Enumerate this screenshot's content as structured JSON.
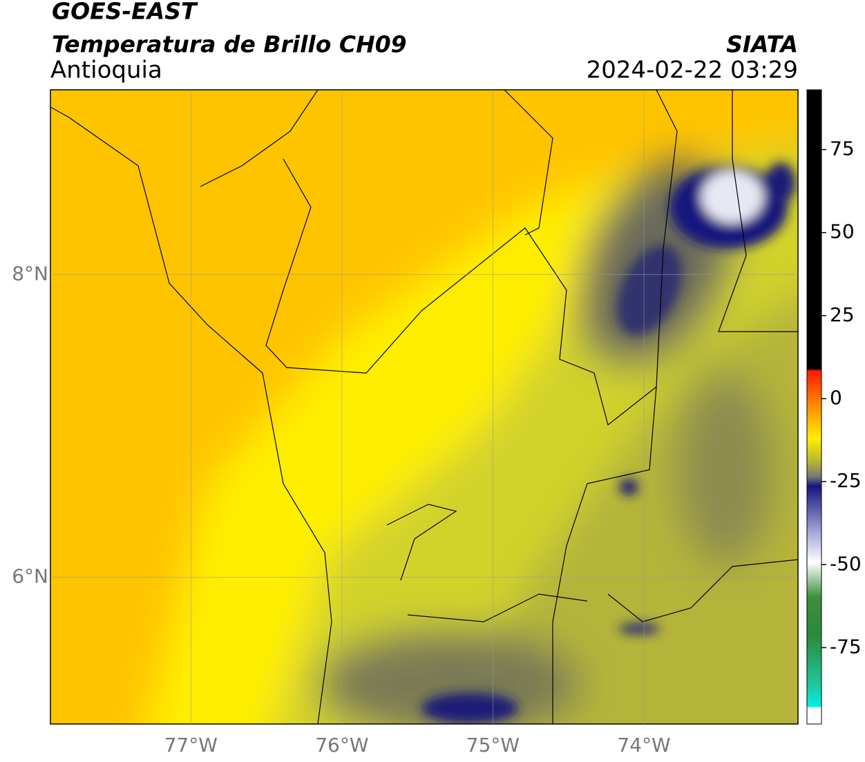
{
  "header": {
    "title": "GOES-EAST",
    "subtitle": "Temperatura de Brillo CH09",
    "region": "Antioquia",
    "source": "SIATA",
    "datetime": "2024-02-22 03:29"
  },
  "map": {
    "xlim": [
      -77.93,
      -72.98
    ],
    "ylim": [
      5.03,
      9.22
    ],
    "xticks": [
      {
        "value": -77,
        "label": "77°W"
      },
      {
        "value": -76,
        "label": "76°W"
      },
      {
        "value": -75,
        "label": "75°W"
      },
      {
        "value": -74,
        "label": "74°W"
      }
    ],
    "yticks": [
      {
        "value": 6,
        "label": "6°N"
      },
      {
        "value": 8,
        "label": "8°N"
      }
    ],
    "grid": true
  },
  "colorbar": {
    "lim": [
      -98,
      93
    ],
    "ticks": [
      -75,
      -50,
      -25,
      0,
      25,
      50,
      75
    ]
  }
}
